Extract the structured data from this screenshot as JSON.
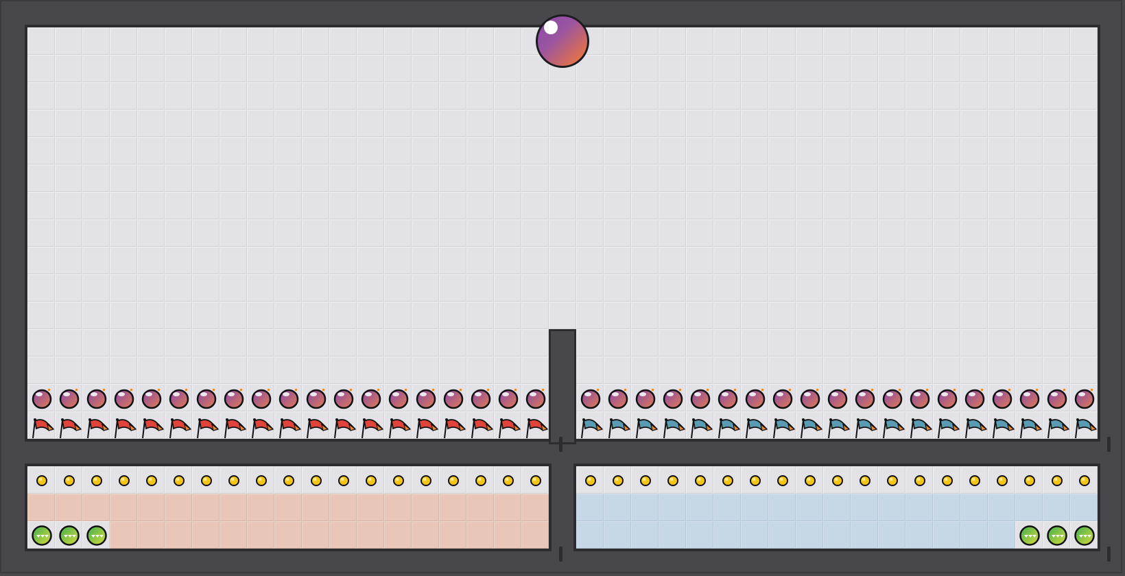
{
  "board": {
    "columns_top": 39,
    "rows_top": 15,
    "columns_per_side": 19,
    "bottom_rows": 3
  },
  "player_orb": {
    "icon": "purple-orange-orb",
    "column": 20
  },
  "left_side": {
    "bombs": 19,
    "flags": 19,
    "flag_color": "#e0433a",
    "coins": 19,
    "fill_color": "#e8c6b8",
    "green_balls": 3,
    "green_ball_alignment": "left"
  },
  "right_side": {
    "bombs": 19,
    "flags": 19,
    "flag_color": "#5a9bb4",
    "coins": 19,
    "fill_color": "#c6d7e5",
    "green_balls": 3,
    "green_ball_alignment": "right"
  },
  "colors": {
    "frame": "#48474c",
    "cell": "#e3e2e7",
    "bomb": "#8d4ea5",
    "coin": "#f5c518",
    "green_ball": "#5fbf4a"
  }
}
